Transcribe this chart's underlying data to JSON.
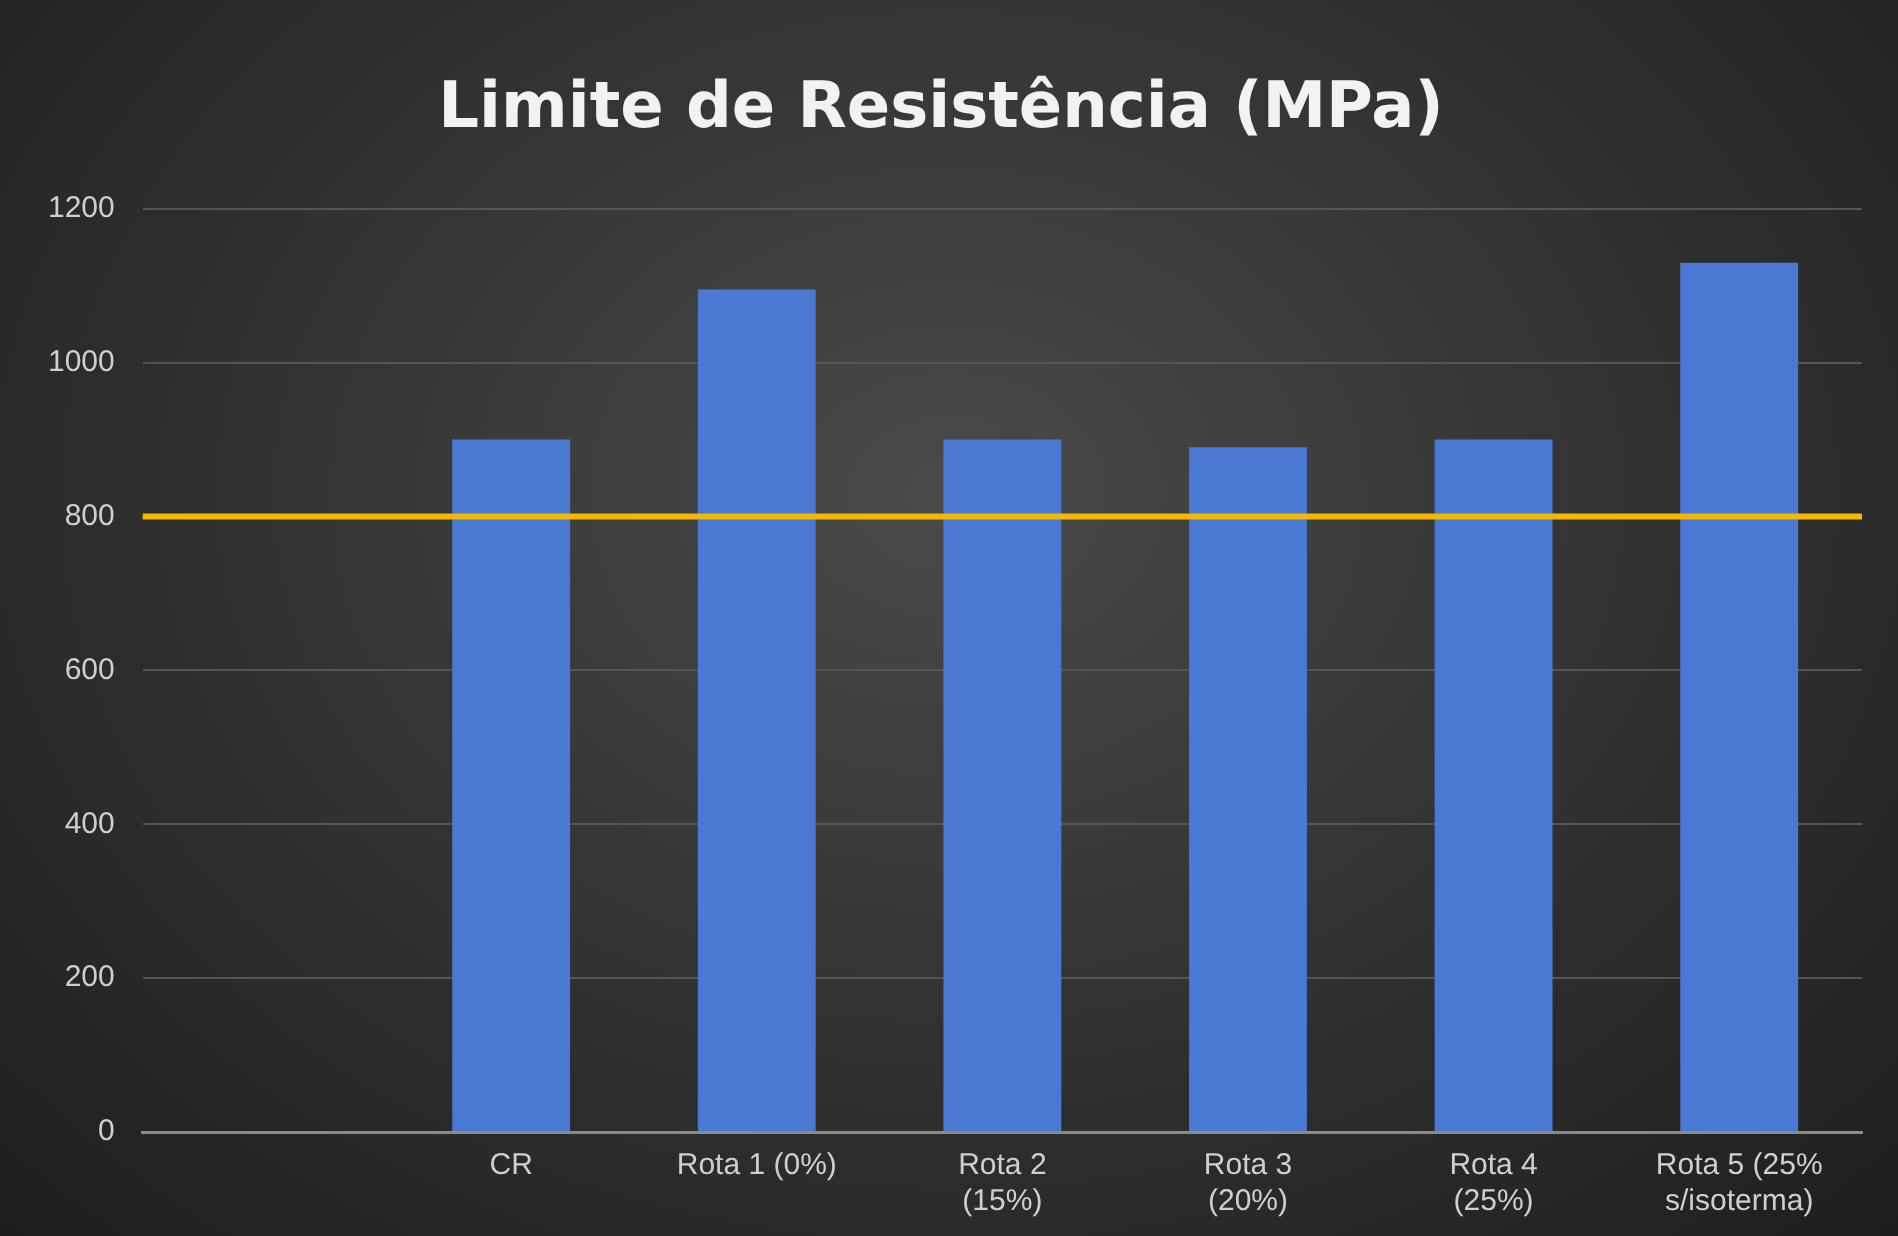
{
  "chart_data": {
    "type": "bar",
    "title": "Limite de Resistência (MPa)",
    "categories": [
      null,
      "CR",
      "Rota 1 (0%)",
      "Rota 2\n(15%)",
      "Rota 3\n(20%)",
      "Rota 4\n(25%)",
      "Rota 5 (25%\ns/isoterma)"
    ],
    "values": [
      null,
      900,
      1095,
      900,
      890,
      900,
      1130
    ],
    "color": "#4a78d2",
    "ylim": [
      0,
      1200
    ],
    "yticks": [
      0,
      200,
      400,
      600,
      800,
      1000,
      1200
    ],
    "grid": "y",
    "legend": false,
    "ref_lines": [
      {
        "axis": "y",
        "value": 800,
        "color": "#f5b800"
      }
    ]
  }
}
